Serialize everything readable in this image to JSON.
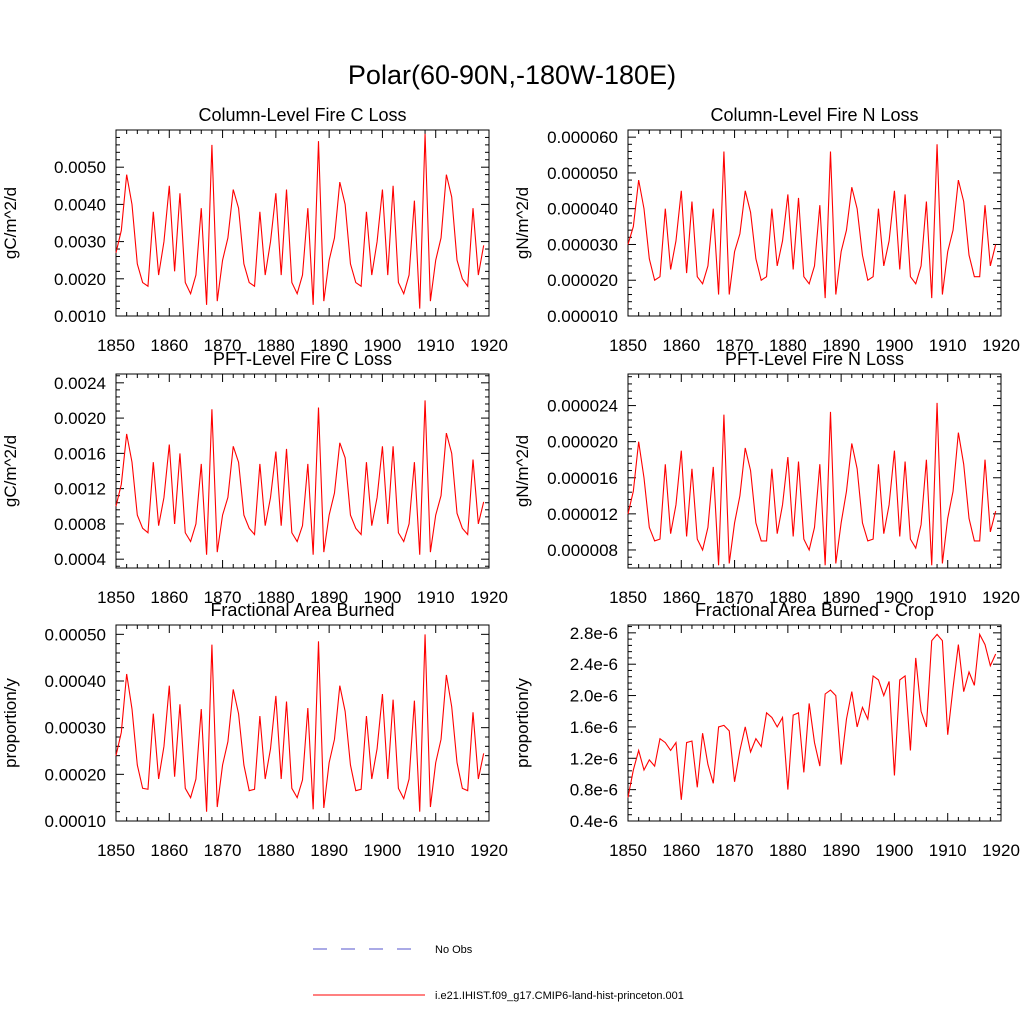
{
  "figure": {
    "title": "Polar(60-90N,-180W-180E)"
  },
  "legend": {
    "items": [
      {
        "label": "No Obs",
        "color": "#5555cc",
        "style": "dashed"
      },
      {
        "label": "i.e21.IHIST.f09_g17.CMIP6-land-hist-princeton.001",
        "color": "#ff0000",
        "style": "solid"
      }
    ]
  },
  "chart_data": [
    {
      "type": "line",
      "title": "Column-Level Fire C Loss",
      "xlabel": "",
      "ylabel": "gC/m^2/d",
      "xlim": [
        1850,
        1920
      ],
      "ylim": [
        0.001,
        0.006
      ],
      "xticks": [
        1850,
        1860,
        1870,
        1880,
        1890,
        1900,
        1910,
        1920
      ],
      "yticks": [
        0.001,
        0.002,
        0.003,
        0.004,
        0.005
      ],
      "ytick_labels": [
        "0.0010",
        "0.0020",
        "0.0030",
        "0.0040",
        "0.0050"
      ],
      "x_start": 1850,
      "series": [
        {
          "color": "#ff0000",
          "values": [
            0.0027,
            0.0033,
            0.0048,
            0.004,
            0.0024,
            0.0019,
            0.0018,
            0.0038,
            0.0021,
            0.003,
            0.0045,
            0.0022,
            0.0043,
            0.0019,
            0.0016,
            0.0021,
            0.0039,
            0.0013,
            0.0056,
            0.0014,
            0.0025,
            0.0031,
            0.0044,
            0.0039,
            0.0024,
            0.0019,
            0.0018,
            0.0038,
            0.0021,
            0.003,
            0.0043,
            0.0021,
            0.0044,
            0.0019,
            0.0016,
            0.0021,
            0.0039,
            0.0013,
            0.0057,
            0.0014,
            0.0025,
            0.0031,
            0.0046,
            0.004,
            0.0024,
            0.0019,
            0.0018,
            0.0038,
            0.0021,
            0.003,
            0.0044,
            0.0021,
            0.0045,
            0.0019,
            0.0016,
            0.0021,
            0.0041,
            0.0012,
            0.0059,
            0.0014,
            0.0025,
            0.0031,
            0.0048,
            0.0042,
            0.0025,
            0.002,
            0.0018,
            0.0039,
            0.0021,
            0.0029
          ]
        }
      ]
    },
    {
      "type": "line",
      "title": "Column-Level Fire N Loss",
      "xlabel": "",
      "ylabel": "gN/m^2/d",
      "xlim": [
        1850,
        1920
      ],
      "ylim": [
        1e-05,
        6.2e-05
      ],
      "xticks": [
        1850,
        1860,
        1870,
        1880,
        1890,
        1900,
        1910,
        1920
      ],
      "yticks": [
        1e-05,
        2e-05,
        3e-05,
        4e-05,
        5e-05,
        6e-05
      ],
      "ytick_labels": [
        "0.000010",
        "0.000020",
        "0.000030",
        "0.000040",
        "0.000050",
        "0.000060"
      ],
      "x_start": 1850,
      "series": [
        {
          "color": "#ff0000",
          "values": [
            3e-05,
            3.5e-05,
            4.8e-05,
            4e-05,
            2.6e-05,
            2e-05,
            2.1e-05,
            4e-05,
            2.3e-05,
            3.1e-05,
            4.5e-05,
            2.2e-05,
            4.2e-05,
            2.1e-05,
            1.9e-05,
            2.4e-05,
            4e-05,
            1.6e-05,
            5.6e-05,
            1.6e-05,
            2.8e-05,
            3.3e-05,
            4.5e-05,
            3.9e-05,
            2.6e-05,
            2e-05,
            2.1e-05,
            4e-05,
            2.4e-05,
            3.1e-05,
            4.4e-05,
            2.3e-05,
            4.3e-05,
            2.1e-05,
            1.9e-05,
            2.4e-05,
            4.1e-05,
            1.5e-05,
            5.6e-05,
            1.6e-05,
            2.8e-05,
            3.4e-05,
            4.6e-05,
            4e-05,
            2.7e-05,
            2e-05,
            2.1e-05,
            4e-05,
            2.4e-05,
            3.1e-05,
            4.5e-05,
            2.3e-05,
            4.4e-05,
            2.1e-05,
            1.9e-05,
            2.4e-05,
            4.2e-05,
            1.5e-05,
            5.8e-05,
            1.6e-05,
            2.8e-05,
            3.4e-05,
            4.8e-05,
            4.2e-05,
            2.7e-05,
            2.1e-05,
            2.1e-05,
            4.1e-05,
            2.4e-05,
            3e-05
          ]
        }
      ]
    },
    {
      "type": "line",
      "title": "PFT-Level Fire C Loss",
      "xlabel": "",
      "ylabel": "gC/m^2/d",
      "xlim": [
        1850,
        1920
      ],
      "ylim": [
        0.0003,
        0.0025
      ],
      "xticks": [
        1850,
        1860,
        1870,
        1880,
        1890,
        1900,
        1910,
        1920
      ],
      "yticks": [
        0.0004,
        0.0008,
        0.0012,
        0.0016,
        0.002,
        0.0024
      ],
      "ytick_labels": [
        "0.0004",
        "0.0008",
        "0.0012",
        "0.0016",
        "0.0020",
        "0.0024"
      ],
      "x_start": 1850,
      "series": [
        {
          "color": "#ff0000",
          "values": [
            0.001,
            0.00125,
            0.00182,
            0.0015,
            0.0009,
            0.00075,
            0.0007,
            0.0015,
            0.00078,
            0.0011,
            0.0017,
            0.0008,
            0.0016,
            0.0007,
            0.0006,
            0.0008,
            0.00148,
            0.00045,
            0.0021,
            0.00048,
            0.0009,
            0.0011,
            0.00168,
            0.0015,
            0.0009,
            0.00075,
            0.00068,
            0.00148,
            0.00078,
            0.0011,
            0.00162,
            0.00078,
            0.00165,
            0.0007,
            0.0006,
            0.00078,
            0.00148,
            0.00045,
            0.00212,
            0.00048,
            0.0009,
            0.00115,
            0.00172,
            0.00155,
            0.0009,
            0.00075,
            0.00068,
            0.0015,
            0.00078,
            0.0011,
            0.00168,
            0.0008,
            0.00168,
            0.0007,
            0.0006,
            0.0008,
            0.0015,
            0.00045,
            0.0022,
            0.00048,
            0.0009,
            0.00112,
            0.00183,
            0.0016,
            0.00092,
            0.00075,
            0.00068,
            0.00153,
            0.0008,
            0.00105
          ]
        }
      ]
    },
    {
      "type": "line",
      "title": "PFT-Level Fire N Loss",
      "xlabel": "",
      "ylabel": "gN/m^2/d",
      "xlim": [
        1850,
        1920
      ],
      "ylim": [
        6e-06,
        2.75e-05
      ],
      "xticks": [
        1850,
        1860,
        1870,
        1880,
        1890,
        1900,
        1910,
        1920
      ],
      "yticks": [
        8e-06,
        1.2e-05,
        1.6e-05,
        2e-05,
        2.4e-05
      ],
      "ytick_labels": [
        "0.000008",
        "0.000012",
        "0.000016",
        "0.000020",
        "0.000024"
      ],
      "x_start": 1850,
      "series": [
        {
          "color": "#ff0000",
          "values": [
            1.2e-05,
            1.45e-05,
            2e-05,
            1.6e-05,
            1.05e-05,
            9e-06,
            9.2e-06,
            1.75e-05,
            9.8e-06,
            1.3e-05,
            1.9e-05,
            9.5e-06,
            1.7e-05,
            9.2e-06,
            8e-06,
            1.05e-05,
            1.72e-05,
            6.3e-06,
            2.3e-05,
            6.5e-06,
            1.1e-05,
            1.4e-05,
            1.93e-05,
            1.68e-05,
            1.1e-05,
            9e-06,
            9e-06,
            1.7e-05,
            9.8e-06,
            1.3e-05,
            1.83e-05,
            9.5e-06,
            1.78e-05,
            9.2e-06,
            8e-06,
            1.05e-05,
            1.75e-05,
            6.3e-06,
            2.33e-05,
            6.5e-06,
            1.1e-05,
            1.45e-05,
            1.98e-05,
            1.7e-05,
            1.1e-05,
            9e-06,
            9.2e-06,
            1.75e-05,
            9.8e-06,
            1.3e-05,
            1.9e-05,
            9.5e-06,
            1.78e-05,
            9.2e-06,
            8.2e-06,
            1.08e-05,
            1.8e-05,
            6.3e-06,
            2.43e-05,
            6.5e-06,
            1.15e-05,
            1.45e-05,
            2.1e-05,
            1.75e-05,
            1.15e-05,
            9e-06,
            9e-06,
            1.8e-05,
            1e-05,
            1.23e-05
          ]
        }
      ]
    },
    {
      "type": "line",
      "title": "Fractional Area Burned",
      "xlabel": "",
      "ylabel": "proportion/y",
      "xlim": [
        1850,
        1920
      ],
      "ylim": [
        0.0001,
        0.00052
      ],
      "xticks": [
        1850,
        1860,
        1870,
        1880,
        1890,
        1900,
        1910,
        1920
      ],
      "yticks": [
        0.0001,
        0.0002,
        0.0003,
        0.0004,
        0.0005
      ],
      "ytick_labels": [
        "0.00010",
        "0.00020",
        "0.00030",
        "0.00040",
        "0.00050"
      ],
      "x_start": 1850,
      "series": [
        {
          "color": "#ff0000",
          "values": [
            0.00024,
            0.00029,
            0.000415,
            0.00034,
            0.00022,
            0.00017,
            0.000168,
            0.00033,
            0.00019,
            0.00026,
            0.00039,
            0.000195,
            0.00035,
            0.00017,
            0.00015,
            0.00019,
            0.00034,
            0.00012,
            0.000478,
            0.00013,
            0.00022,
            0.00027,
            0.000382,
            0.00033,
            0.00022,
            0.000165,
            0.000168,
            0.000325,
            0.00019,
            0.000255,
            0.000368,
            0.00019,
            0.000356,
            0.00017,
            0.00015,
            0.000188,
            0.000342,
            0.000125,
            0.000485,
            0.000128,
            0.000225,
            0.000275,
            0.00039,
            0.000335,
            0.00022,
            0.000165,
            0.000168,
            0.000325,
            0.00019,
            0.000255,
            0.000372,
            0.00019,
            0.00036,
            0.00017,
            0.000148,
            0.00019,
            0.000358,
            0.00012,
            0.0005,
            0.00013,
            0.000225,
            0.000275,
            0.000413,
            0.000345,
            0.000225,
            0.00017,
            0.000165,
            0.000333,
            0.00019,
            0.000245
          ]
        }
      ]
    },
    {
      "type": "line",
      "title": "Fractional Area Burned - Crop",
      "xlabel": "",
      "ylabel": "proportion/y",
      "xlim": [
        1850,
        1920
      ],
      "ylim": [
        4e-07,
        2.9e-06
      ],
      "xticks": [
        1850,
        1860,
        1870,
        1880,
        1890,
        1900,
        1910,
        1920
      ],
      "yticks": [
        4e-07,
        8e-07,
        1.2e-06,
        1.6e-06,
        2e-06,
        2.4e-06,
        2.8e-06
      ],
      "ytick_labels": [
        "0.4e-6",
        "0.8e-6",
        "1.2e-6",
        "1.6e-6",
        "2.0e-6",
        "2.4e-6",
        "2.8e-6"
      ],
      "x_start": 1850,
      "series": [
        {
          "color": "#ff0000",
          "values": [
            7e-07,
            1.05e-06,
            1.3e-06,
            1.05e-06,
            1.18e-06,
            1.1e-06,
            1.45e-06,
            1.4e-06,
            1.3e-06,
            1.4e-06,
            6.7e-07,
            1.4e-06,
            1.42e-06,
            8.3e-07,
            1.52e-06,
            1.12e-06,
            8.8e-07,
            1.6e-06,
            1.62e-06,
            1.55e-06,
            9e-07,
            1.3e-06,
            1.6e-06,
            1.28e-06,
            1.45e-06,
            1.35e-06,
            1.78e-06,
            1.72e-06,
            1.6e-06,
            1.72e-06,
            8e-07,
            1.75e-06,
            1.78e-06,
            1.02e-06,
            1.9e-06,
            1.4e-06,
            1.1e-06,
            2.02e-06,
            2.07e-06,
            2e-06,
            1.12e-06,
            1.7e-06,
            2.05e-06,
            1.6e-06,
            1.85e-06,
            1.7e-06,
            2.25e-06,
            2.2e-06,
            2e-06,
            2.18e-06,
            9.8e-07,
            2.2e-06,
            2.25e-06,
            1.3e-06,
            2.48e-06,
            1.8e-06,
            1.6e-06,
            2.7e-06,
            2.78e-06,
            2.7e-06,
            1.5e-06,
            2.1e-06,
            2.65e-06,
            2.05e-06,
            2.3e-06,
            2.13e-06,
            2.78e-06,
            2.65e-06,
            2.38e-06,
            2.53e-06
          ]
        }
      ]
    }
  ]
}
